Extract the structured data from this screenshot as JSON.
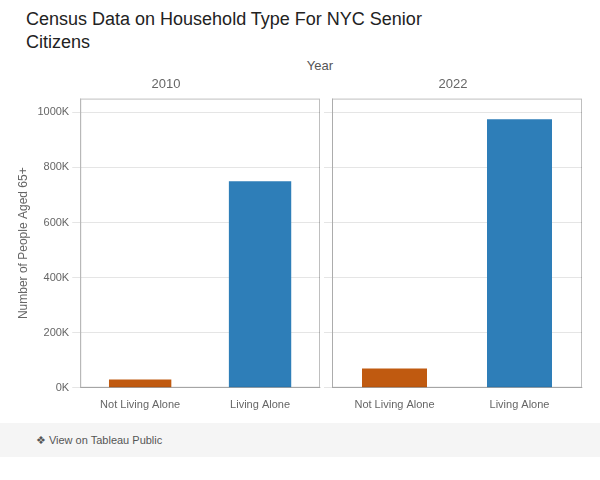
{
  "chart_data": {
    "type": "bar",
    "title": "Census Data on Household Type For NYC Senior\nCitizens",
    "ylabel": "Number of People Aged 65+",
    "panel_label": "Year",
    "categories": [
      "Not Living Alone",
      "Living Alone"
    ],
    "panels": [
      {
        "title": "2010",
        "values": [
          30000,
          750000
        ]
      },
      {
        "title": "2022",
        "values": [
          70000,
          975000
        ]
      }
    ],
    "colors": [
      "#C05A10",
      "#2E7EB8"
    ],
    "ylim": [
      0,
      1050000
    ],
    "yticks": [
      {
        "value": 0,
        "label": "0K"
      },
      {
        "value": 200000,
        "label": "200K"
      },
      {
        "value": 400000,
        "label": "400K"
      },
      {
        "value": 600000,
        "label": "600K"
      },
      {
        "value": 800000,
        "label": "800K"
      },
      {
        "value": 1000000,
        "label": "1000K"
      }
    ],
    "grid": true,
    "annotations": [
      "❖ View on Tableau Public"
    ]
  }
}
